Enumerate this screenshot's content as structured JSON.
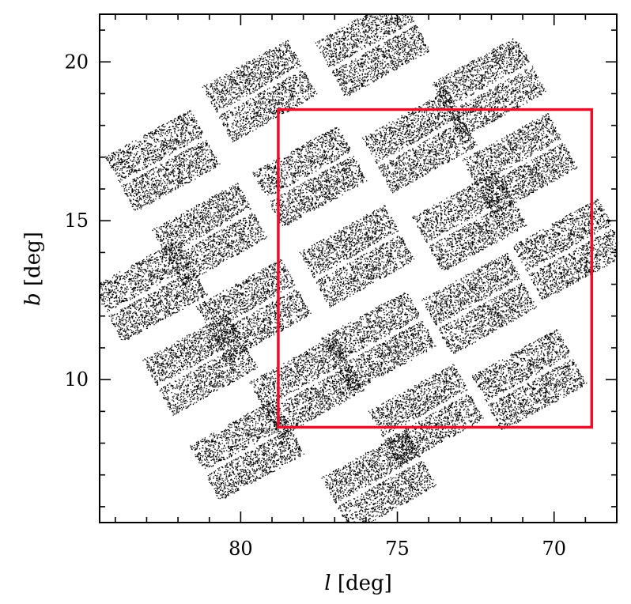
{
  "chart_data": {
    "type": "scatter",
    "xlabel_symbol": "l",
    "xlabel_unit": "[deg]",
    "ylabel_symbol": "b",
    "ylabel_unit": "[deg]",
    "xlim": [
      84.5,
      68.0
    ],
    "ylim": [
      5.5,
      21.5
    ],
    "x_ticks": [
      80,
      75,
      70
    ],
    "x_tick_labels": [
      "80",
      "75",
      "70"
    ],
    "y_ticks": [
      10,
      15,
      20
    ],
    "y_tick_labels": [
      "10",
      "15",
      "20"
    ],
    "x_minor_step": 1,
    "y_minor_step": 1,
    "grid": false,
    "point_color": "#000000",
    "ccd_modules": [
      {
        "center": [
          72.1,
          19.2
        ],
        "angle": -0.5,
        "width": 3.1,
        "height": 2.0
      },
      {
        "center": [
          75.8,
          20.5
        ],
        "angle": -0.5,
        "width": 3.1,
        "height": 2.0
      },
      {
        "center": [
          79.4,
          19.1
        ],
        "angle": -0.5,
        "width": 3.1,
        "height": 2.0
      },
      {
        "center": [
          82.5,
          16.9
        ],
        "angle": -0.5,
        "width": 3.1,
        "height": 2.0
      },
      {
        "center": [
          71.1,
          16.8
        ],
        "angle": -0.5,
        "width": 3.1,
        "height": 2.0
      },
      {
        "center": [
          74.3,
          17.5
        ],
        "angle": -0.5,
        "width": 3.1,
        "height": 2.0
      },
      {
        "center": [
          77.8,
          16.4
        ],
        "angle": -0.5,
        "width": 3.1,
        "height": 2.0
      },
      {
        "center": [
          81.0,
          14.6
        ],
        "angle": -0.5,
        "width": 3.1,
        "height": 2.0
      },
      {
        "center": [
          69.5,
          14.1
        ],
        "angle": -0.5,
        "width": 3.1,
        "height": 2.0
      },
      {
        "center": [
          72.7,
          15.0
        ],
        "angle": -0.5,
        "width": 3.1,
        "height": 2.0
      },
      {
        "center": [
          76.3,
          13.9
        ],
        "angle": -0.5,
        "width": 3.1,
        "height": 2.0
      },
      {
        "center": [
          82.9,
          12.8
        ],
        "angle": -0.5,
        "width": 3.1,
        "height": 2.0
      },
      {
        "center": [
          72.4,
          12.4
        ],
        "angle": -0.5,
        "width": 3.1,
        "height": 2.0
      },
      {
        "center": [
          79.6,
          12.2
        ],
        "angle": -0.5,
        "width": 3.1,
        "height": 2.0
      },
      {
        "center": [
          75.6,
          11.2
        ],
        "angle": -0.5,
        "width": 3.1,
        "height": 2.0
      },
      {
        "center": [
          81.3,
          10.5
        ],
        "angle": -0.5,
        "width": 3.1,
        "height": 2.0
      },
      {
        "center": [
          70.8,
          10.0
        ],
        "angle": -0.5,
        "width": 3.1,
        "height": 2.0
      },
      {
        "center": [
          77.9,
          9.8
        ],
        "angle": -0.5,
        "width": 3.1,
        "height": 2.0
      },
      {
        "center": [
          74.1,
          8.9
        ],
        "angle": -0.5,
        "width": 3.1,
        "height": 2.0
      },
      {
        "center": [
          79.8,
          7.8
        ],
        "angle": -0.5,
        "width": 3.1,
        "height": 2.0
      },
      {
        "center": [
          75.6,
          6.8
        ],
        "angle": -0.5,
        "width": 3.1,
        "height": 2.0
      }
    ],
    "overlay_box": {
      "l_range": [
        78.8,
        68.8
      ],
      "b_range": [
        8.5,
        18.5
      ],
      "color": "#e8102a"
    }
  }
}
